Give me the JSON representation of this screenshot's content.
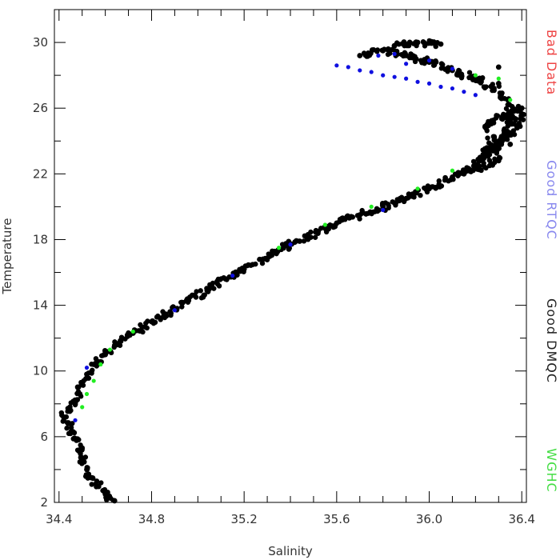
{
  "chart_data": {
    "type": "scatter",
    "title": "",
    "xlabel": "Salinity",
    "ylabel": "Temperature",
    "xlim": [
      34.38,
      36.42
    ],
    "ylim": [
      2,
      32
    ],
    "x_ticks": [
      34.4,
      34.8,
      35.2,
      35.6,
      36.0,
      36.4
    ],
    "x_tick_labels": [
      "34.4",
      "34.8",
      "35.2",
      "35.6",
      "36.0",
      "36.4"
    ],
    "y_ticks": [
      2,
      6,
      10,
      14,
      18,
      22,
      26,
      30
    ],
    "y_tick_labels": [
      "2",
      "6",
      "10",
      "14",
      "18",
      "22",
      "26",
      "30"
    ],
    "grid": false,
    "legend_placement": "right, vertical",
    "series": [
      {
        "name": "Good DMQC",
        "color": "#000000",
        "points": [
          [
            34.64,
            2.1
          ],
          [
            34.6,
            2.5
          ],
          [
            34.57,
            3.0
          ],
          [
            34.54,
            3.5
          ],
          [
            34.52,
            4.0
          ],
          [
            34.5,
            4.6
          ],
          [
            34.49,
            5.2
          ],
          [
            34.48,
            5.8
          ],
          [
            34.46,
            6.3
          ],
          [
            34.44,
            6.8
          ],
          [
            34.42,
            7.2
          ],
          [
            34.45,
            7.6
          ],
          [
            34.47,
            8.0
          ],
          [
            34.49,
            8.6
          ],
          [
            34.5,
            9.2
          ],
          [
            34.52,
            9.8
          ],
          [
            34.55,
            10.4
          ],
          [
            34.6,
            11.0
          ],
          [
            34.66,
            11.7
          ],
          [
            34.72,
            12.3
          ],
          [
            34.8,
            13.0
          ],
          [
            34.88,
            13.6
          ],
          [
            34.96,
            14.3
          ],
          [
            35.04,
            14.9
          ],
          [
            35.12,
            15.6
          ],
          [
            35.2,
            16.2
          ],
          [
            35.28,
            16.8
          ],
          [
            35.36,
            17.4
          ],
          [
            35.44,
            17.9
          ],
          [
            35.52,
            18.5
          ],
          [
            35.6,
            19.0
          ],
          [
            35.7,
            19.5
          ],
          [
            35.8,
            20.0
          ],
          [
            35.9,
            20.5
          ],
          [
            36.0,
            21.1
          ],
          [
            36.1,
            21.8
          ],
          [
            36.2,
            22.5
          ],
          [
            36.28,
            23.5
          ],
          [
            36.33,
            24.5
          ],
          [
            36.36,
            25.5
          ],
          [
            36.34,
            26.5
          ],
          [
            36.28,
            27.2
          ],
          [
            36.2,
            27.8
          ],
          [
            36.1,
            28.3
          ],
          [
            36.0,
            28.8
          ],
          [
            35.9,
            29.2
          ],
          [
            35.8,
            29.5
          ],
          [
            35.7,
            29.2
          ],
          [
            36.3,
            28.5
          ],
          [
            36.22,
            23.0
          ],
          [
            36.38,
            24.8
          ],
          [
            36.4,
            26.0
          ],
          [
            36.25,
            25.0
          ],
          [
            36.3,
            22.8
          ],
          [
            36.15,
            22.0
          ],
          [
            36.05,
            29.9
          ],
          [
            35.95,
            30.0
          ],
          [
            35.85,
            29.8
          ],
          [
            36.3,
            27.5
          ],
          [
            36.35,
            23.8
          ]
        ]
      },
      {
        "name": "Good RTQC",
        "color": "#1010e0",
        "points": [
          [
            35.6,
            28.6
          ],
          [
            35.65,
            28.5
          ],
          [
            35.7,
            28.3
          ],
          [
            35.75,
            28.2
          ],
          [
            35.8,
            28.0
          ],
          [
            35.85,
            27.9
          ],
          [
            35.9,
            27.8
          ],
          [
            35.95,
            27.6
          ],
          [
            36.0,
            27.5
          ],
          [
            36.05,
            27.3
          ],
          [
            36.1,
            27.2
          ],
          [
            36.15,
            27.0
          ],
          [
            36.2,
            26.8
          ],
          [
            35.9,
            28.7
          ],
          [
            36.0,
            28.9
          ],
          [
            35.78,
            29.2
          ],
          [
            35.85,
            29.3
          ],
          [
            36.1,
            28.4
          ],
          [
            34.52,
            10.2
          ],
          [
            34.9,
            13.7
          ],
          [
            35.15,
            15.8
          ],
          [
            35.4,
            17.7
          ],
          [
            35.8,
            19.8
          ],
          [
            34.47,
            7.0
          ]
        ]
      },
      {
        "name": "WGHC",
        "color": "#22ee22",
        "points": [
          [
            34.5,
            7.8
          ],
          [
            34.52,
            8.6
          ],
          [
            34.55,
            9.4
          ],
          [
            34.58,
            10.4
          ],
          [
            34.62,
            11.3
          ],
          [
            34.72,
            12.4
          ],
          [
            35.35,
            17.5
          ],
          [
            35.55,
            18.9
          ],
          [
            35.75,
            20.0
          ],
          [
            35.95,
            21.1
          ],
          [
            36.1,
            22.2
          ],
          [
            36.2,
            28.0
          ],
          [
            36.3,
            27.8
          ],
          [
            36.35,
            26.5
          ]
        ]
      },
      {
        "name": "Bad Data",
        "color": "#ee4444",
        "points": []
      }
    ]
  },
  "legend": [
    {
      "label": "Bad Data",
      "color": "#ee4444"
    },
    {
      "label": "Good RTQC",
      "color": "#8888ee"
    },
    {
      "label": "Good DMQC",
      "color": "#222222"
    },
    {
      "label": "WGHC",
      "color": "#44dd44"
    }
  ]
}
